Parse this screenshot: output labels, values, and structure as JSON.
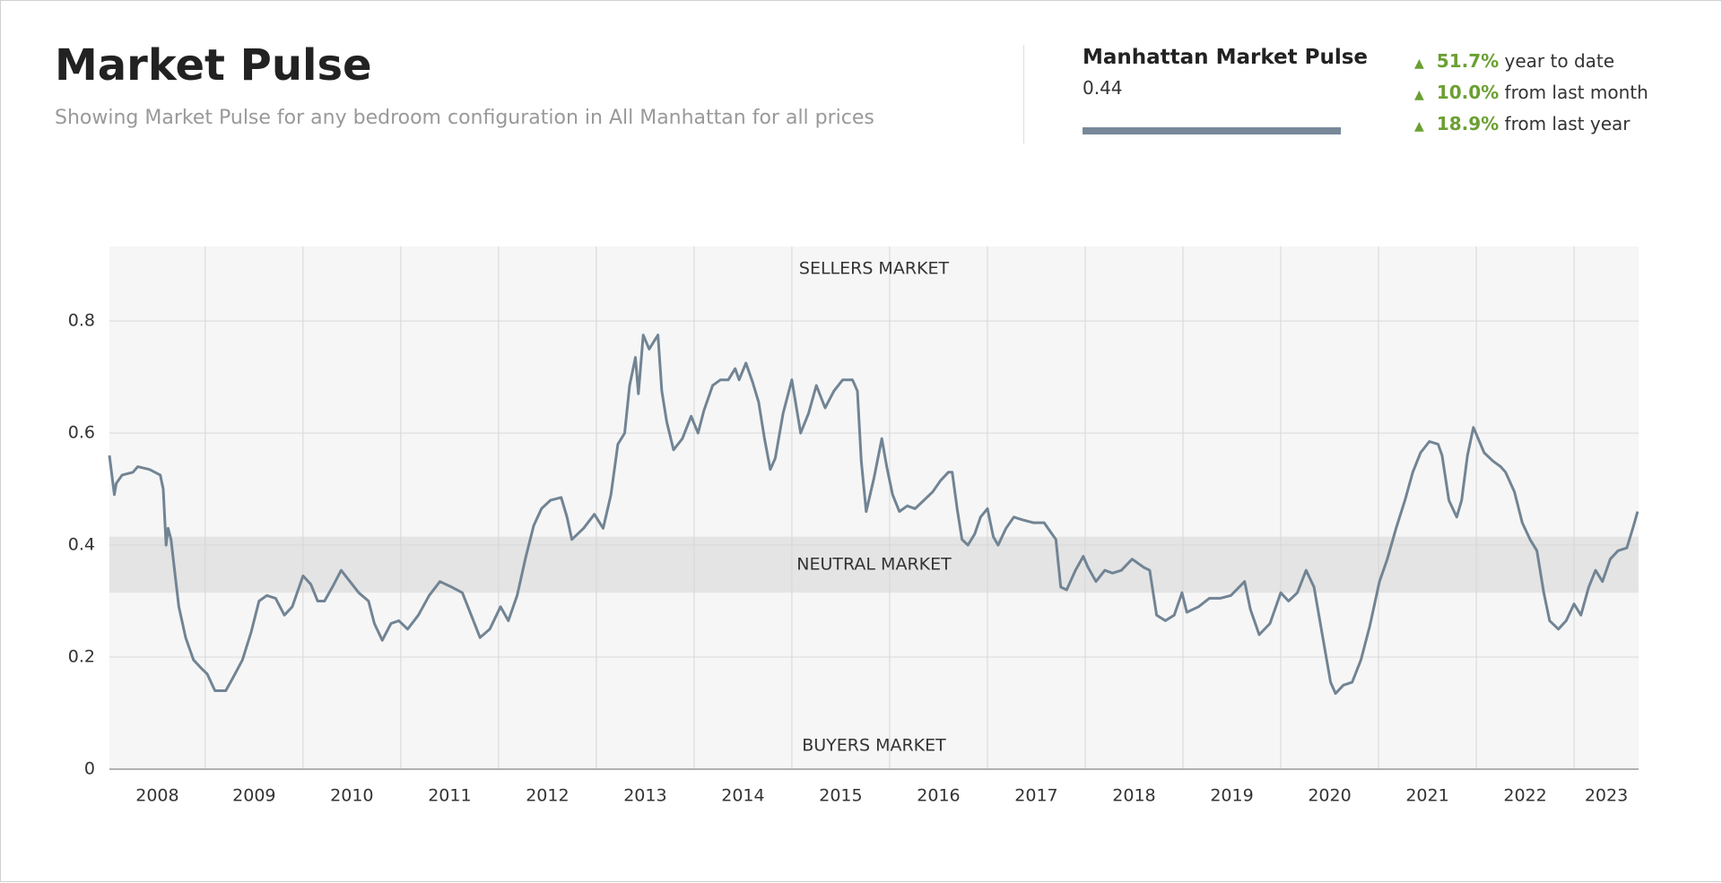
{
  "header": {
    "title": "Market Pulse",
    "subtitle": "Showing Market Pulse for any bedroom configuration in All Manhattan for all prices"
  },
  "summary": {
    "title": "Manhattan Market Pulse",
    "value": "0.44",
    "changes": [
      {
        "change": "51.7%",
        "label": "year to date"
      },
      {
        "change": "10.0%",
        "label": "from last month"
      },
      {
        "change": "18.9%",
        "label": "from last year"
      }
    ]
  },
  "chart_data": {
    "type": "line",
    "color": "#718494",
    "grid": true,
    "xlim": [
      2008.02,
      2023.66
    ],
    "xticks": [
      2008,
      2009,
      2010,
      2011,
      2012,
      2013,
      2014,
      2015,
      2016,
      2017,
      2018,
      2019,
      2020,
      2021,
      2022,
      2023
    ],
    "ylim": [
      0,
      0.933
    ],
    "yticks": [
      0,
      0.2,
      0.4,
      0.6,
      0.8
    ],
    "bands": [
      {
        "name": "NEUTRAL MARKET",
        "range": [
          0.315,
          0.415
        ]
      }
    ],
    "annotations": {
      "top": "SELLERS MARKET",
      "bottom": "BUYERS MARKET"
    },
    "x": [
      2008.02,
      2008.07,
      2008.09,
      2008.15,
      2008.26,
      2008.31,
      2008.43,
      2008.54,
      2008.57,
      2008.6,
      2008.62,
      2008.65,
      2008.69,
      2008.73,
      2008.8,
      2008.88,
      2008.96,
      2009.02,
      2009.1,
      2009.21,
      2009.29,
      2009.38,
      2009.47,
      2009.55,
      2009.63,
      2009.72,
      2009.81,
      2009.89,
      2009.94,
      2010.0,
      2010.08,
      2010.15,
      2010.22,
      2010.3,
      2010.39,
      2010.48,
      2010.57,
      2010.67,
      2010.73,
      2010.81,
      2010.9,
      2010.98,
      2011.07,
      2011.18,
      2011.29,
      2011.4,
      2011.52,
      2011.63,
      2011.72,
      2011.81,
      2011.91,
      2012.02,
      2012.1,
      2012.19,
      2012.28,
      2012.36,
      2012.44,
      2012.53,
      2012.64,
      2012.7,
      2012.75,
      2012.87,
      2012.98,
      2013.07,
      2013.15,
      2013.22,
      2013.29,
      2013.34,
      2013.4,
      2013.43,
      2013.48,
      2013.54,
      2013.63,
      2013.67,
      2013.72,
      2013.79,
      2013.88,
      2013.97,
      2014.04,
      2014.1,
      2014.19,
      2014.27,
      2014.35,
      2014.42,
      2014.46,
      2014.53,
      2014.6,
      2014.66,
      2014.72,
      2014.78,
      2014.83,
      2014.91,
      2015.0,
      2015.09,
      2015.17,
      2015.25,
      2015.34,
      2015.43,
      2015.52,
      2015.62,
      2015.67,
      2015.71,
      2015.76,
      2015.84,
      2015.92,
      2015.97,
      2016.03,
      2016.1,
      2016.18,
      2016.26,
      2016.35,
      2016.44,
      2016.52,
      2016.6,
      2016.64,
      2016.69,
      2016.74,
      2016.8,
      2016.87,
      2016.93,
      2017.0,
      2017.06,
      2017.11,
      2017.19,
      2017.27,
      2017.36,
      2017.47,
      2017.58,
      2017.66,
      2017.7,
      2017.75,
      2017.81,
      2017.9,
      2017.98,
      2018.03,
      2018.11,
      2018.2,
      2018.28,
      2018.37,
      2018.48,
      2018.6,
      2018.66,
      2018.73,
      2018.82,
      2018.91,
      2018.99,
      2019.04,
      2019.16,
      2019.27,
      2019.38,
      2019.49,
      2019.63,
      2019.69,
      2019.78,
      2019.89,
      2020.0,
      2020.08,
      2020.17,
      2020.26,
      2020.34,
      2020.42,
      2020.51,
      2020.56,
      2020.64,
      2020.73,
      2020.82,
      2020.91,
      2021.01,
      2021.09,
      2021.18,
      2021.27,
      2021.35,
      2021.43,
      2021.52,
      2021.61,
      2021.65,
      2021.72,
      2021.8,
      2021.85,
      2021.91,
      2021.97,
      2022.02,
      2022.08,
      2022.17,
      2022.25,
      2022.3,
      2022.39,
      2022.47,
      2022.55,
      2022.62,
      2022.69,
      2022.75,
      2022.84,
      2022.92,
      2023.0,
      2023.07,
      2023.15,
      2023.22,
      2023.29,
      2023.37,
      2023.45,
      2023.54,
      2023.61,
      2023.65
    ],
    "values": [
      0.56,
      0.49,
      0.51,
      0.525,
      0.53,
      0.54,
      0.535,
      0.525,
      0.5,
      0.4,
      0.43,
      0.41,
      0.35,
      0.29,
      0.235,
      0.195,
      0.18,
      0.17,
      0.14,
      0.14,
      0.165,
      0.195,
      0.245,
      0.3,
      0.31,
      0.305,
      0.275,
      0.29,
      0.315,
      0.345,
      0.33,
      0.3,
      0.3,
      0.325,
      0.355,
      0.335,
      0.315,
      0.3,
      0.26,
      0.23,
      0.26,
      0.265,
      0.25,
      0.275,
      0.31,
      0.335,
      0.325,
      0.315,
      0.275,
      0.235,
      0.25,
      0.29,
      0.265,
      0.31,
      0.38,
      0.435,
      0.465,
      0.48,
      0.485,
      0.45,
      0.41,
      0.43,
      0.455,
      0.43,
      0.49,
      0.58,
      0.6,
      0.685,
      0.735,
      0.67,
      0.775,
      0.75,
      0.775,
      0.675,
      0.62,
      0.57,
      0.59,
      0.63,
      0.6,
      0.64,
      0.685,
      0.695,
      0.695,
      0.715,
      0.695,
      0.725,
      0.69,
      0.655,
      0.59,
      0.535,
      0.555,
      0.635,
      0.695,
      0.6,
      0.635,
      0.685,
      0.645,
      0.675,
      0.695,
      0.695,
      0.675,
      0.55,
      0.46,
      0.52,
      0.59,
      0.54,
      0.49,
      0.46,
      0.47,
      0.465,
      0.48,
      0.495,
      0.515,
      0.53,
      0.53,
      0.465,
      0.41,
      0.4,
      0.42,
      0.45,
      0.465,
      0.415,
      0.4,
      0.43,
      0.45,
      0.445,
      0.44,
      0.44,
      0.42,
      0.41,
      0.325,
      0.32,
      0.355,
      0.38,
      0.36,
      0.335,
      0.355,
      0.35,
      0.355,
      0.375,
      0.36,
      0.355,
      0.275,
      0.265,
      0.275,
      0.315,
      0.28,
      0.29,
      0.305,
      0.305,
      0.31,
      0.335,
      0.285,
      0.24,
      0.26,
      0.315,
      0.3,
      0.315,
      0.355,
      0.325,
      0.245,
      0.155,
      0.135,
      0.15,
      0.155,
      0.195,
      0.255,
      0.335,
      0.375,
      0.43,
      0.48,
      0.53,
      0.565,
      0.585,
      0.58,
      0.56,
      0.48,
      0.45,
      0.48,
      0.56,
      0.61,
      0.59,
      0.565,
      0.55,
      0.54,
      0.53,
      0.495,
      0.44,
      0.41,
      0.39,
      0.315,
      0.265,
      0.25,
      0.265,
      0.295,
      0.275,
      0.325,
      0.355,
      0.335,
      0.375,
      0.39,
      0.395,
      0.435,
      0.46
    ]
  }
}
